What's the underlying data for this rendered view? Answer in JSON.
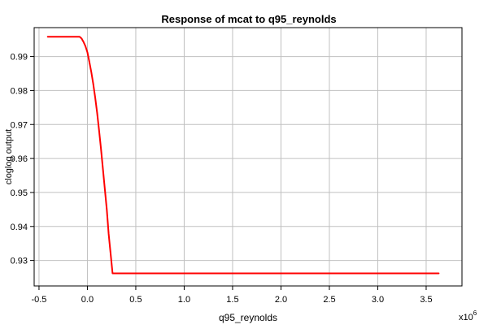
{
  "chart_data": {
    "type": "line",
    "title": "Response of mcat to q95_reynolds",
    "xlabel": "q95_reynolds",
    "ylabel": "cloglog output",
    "x_multiplier": "x10",
    "x_multiplier_exponent": "6",
    "xlim": [
      -0.55,
      3.87
    ],
    "ylim": [
      0.9225,
      0.9985
    ],
    "xticks": [
      -0.5,
      0.0,
      0.5,
      1.0,
      1.5,
      2.0,
      2.5,
      3.0,
      3.5
    ],
    "xtick_labels": [
      "-0.5",
      "0.0",
      "0.5",
      "1.0",
      "1.5",
      "2.0",
      "2.5",
      "3.0",
      "3.5"
    ],
    "yticks": [
      0.93,
      0.94,
      0.95,
      0.96,
      0.97,
      0.98,
      0.99
    ],
    "ytick_labels": [
      "0.93",
      "0.94",
      "0.95",
      "0.96",
      "0.97",
      "0.98",
      "0.99"
    ],
    "grid": true,
    "series": [
      {
        "color": "#ff0000",
        "x": [
          -0.41,
          -0.2,
          -0.08,
          -0.06,
          -0.04,
          -0.02,
          0.0,
          0.02,
          0.04,
          0.06,
          0.08,
          0.1,
          0.12,
          0.14,
          0.16,
          0.18,
          0.2,
          0.22,
          0.24,
          0.26,
          1.0,
          2.0,
          3.0,
          3.63
        ],
        "y": [
          0.9958,
          0.9958,
          0.9958,
          0.9953,
          0.9943,
          0.993,
          0.9912,
          0.9885,
          0.9855,
          0.982,
          0.978,
          0.9735,
          0.9685,
          0.963,
          0.957,
          0.951,
          0.945,
          0.9378,
          0.932,
          0.9262,
          0.9262,
          0.9262,
          0.9262,
          0.9262
        ]
      }
    ]
  }
}
